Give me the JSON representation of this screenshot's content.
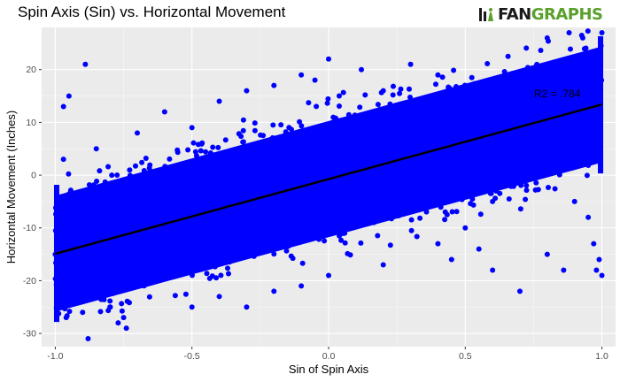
{
  "chart_data": {
    "type": "scatter",
    "title": "Spin Axis (Sin) vs. Horizontal Movement",
    "xlabel": "Sin of Spin Axis",
    "ylabel": "Horizontal Movement (Inches)",
    "xlim": [
      -1.05,
      1.05
    ],
    "ylim": [
      -32.5,
      28
    ],
    "x_ticks": [
      -1.0,
      -0.5,
      0.0,
      0.5,
      1.0
    ],
    "x_tick_labels": [
      "-1.0",
      "-0.5",
      "0.0",
      "0.5",
      "1.0"
    ],
    "y_ticks": [
      -30,
      -20,
      -10,
      0,
      10,
      20
    ],
    "y_tick_labels": [
      "-30",
      "-20",
      "-10",
      "0",
      "10",
      "20"
    ],
    "grid": true,
    "point_color": "#0000ff",
    "series": [
      {
        "values": [
          {
            "x": -1.0,
            "y": -15
          },
          {
            "x": -0.97,
            "y": 3
          },
          {
            "x": -0.96,
            "y": -27
          },
          {
            "x": -0.97,
            "y": 13
          },
          {
            "x": -0.95,
            "y": 15
          },
          {
            "x": -0.88,
            "y": -31
          },
          {
            "x": -0.9,
            "y": -26
          },
          {
            "x": -0.8,
            "y": -25
          },
          {
            "x": -0.75,
            "y": -27
          },
          {
            "x": -0.77,
            "y": -28
          },
          {
            "x": -0.74,
            "y": -29
          },
          {
            "x": -0.5,
            "y": -25
          },
          {
            "x": -0.4,
            "y": -23
          },
          {
            "x": -0.2,
            "y": -22
          },
          {
            "x": -0.1,
            "y": -21
          },
          {
            "x": 0.0,
            "y": -19
          },
          {
            "x": 0.2,
            "y": -17
          },
          {
            "x": -0.7,
            "y": 8
          },
          {
            "x": -0.6,
            "y": 12
          },
          {
            "x": -0.5,
            "y": 9
          },
          {
            "x": -0.4,
            "y": 14
          },
          {
            "x": -0.3,
            "y": 16
          },
          {
            "x": -0.2,
            "y": 17
          },
          {
            "x": -0.1,
            "y": 19
          },
          {
            "x": 0.0,
            "y": 22
          },
          {
            "x": -0.05,
            "y": 18
          },
          {
            "x": -0.89,
            "y": 21
          },
          {
            "x": -0.85,
            "y": 5
          },
          {
            "x": 0.12,
            "y": 20
          },
          {
            "x": 0.3,
            "y": 21
          },
          {
            "x": 0.5,
            "y": -10
          },
          {
            "x": 0.55,
            "y": -14
          },
          {
            "x": 0.7,
            "y": -22
          },
          {
            "x": 0.6,
            "y": -18
          },
          {
            "x": 0.8,
            "y": -15
          },
          {
            "x": 0.86,
            "y": -18
          },
          {
            "x": 0.97,
            "y": -13
          },
          {
            "x": 0.99,
            "y": -16
          },
          {
            "x": 1.0,
            "y": -19
          },
          {
            "x": 0.98,
            "y": -18
          },
          {
            "x": 0.4,
            "y": -13
          },
          {
            "x": 0.45,
            "y": -16
          },
          {
            "x": 0.9,
            "y": -5
          },
          {
            "x": 0.95,
            "y": -8
          },
          {
            "x": 0.6,
            "y": -5
          },
          {
            "x": -0.3,
            "y": -25
          },
          {
            "x": 0.2,
            "y": 16
          },
          {
            "x": 0.4,
            "y": 19
          },
          {
            "x": 0.88,
            "y": 27
          },
          {
            "x": 0.93,
            "y": 26
          },
          {
            "x": 1.0,
            "y": 27
          },
          {
            "x": 0.8,
            "y": 26
          }
        ]
      }
    ],
    "fit_line": {
      "x1": -1.0,
      "y1": -14.9,
      "x2": 1.0,
      "y2": 13.4,
      "color": "#000000"
    },
    "annotation": "R2 = .784"
  },
  "logo": {
    "fan": "FAN",
    "graphs": "GRAPHS"
  }
}
